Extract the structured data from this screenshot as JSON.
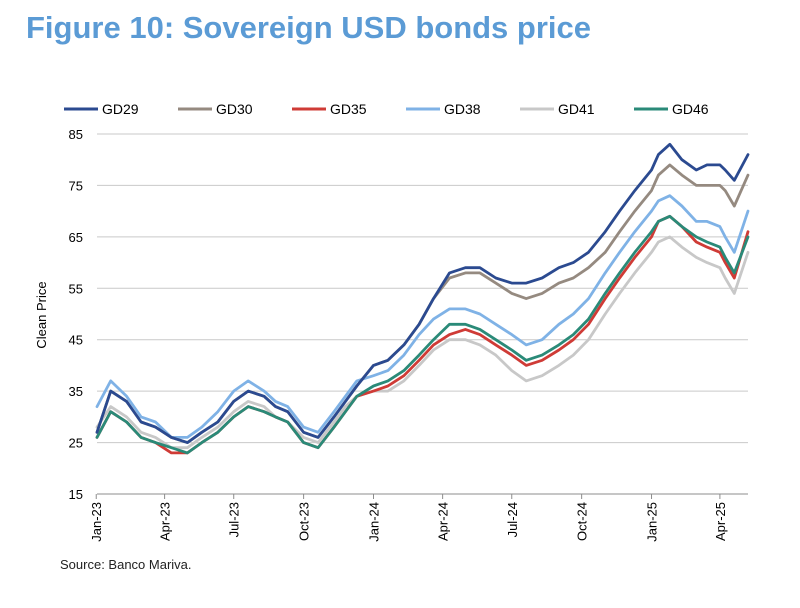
{
  "page": {
    "title": "Figure 10: Sovereign USD bonds price",
    "source": "Source: Banco Mariva."
  },
  "colors": {
    "title": "#5b9bd5",
    "GD29": "#2b4a90",
    "GD30": "#958a80",
    "GD35": "#cf3b36",
    "GD38": "#7fb2e6",
    "GD41": "#c8c8c8",
    "GD46": "#2a8a78"
  },
  "chart_data": {
    "type": "line",
    "ylabel": "Clean Price",
    "xlabel": "",
    "ylim": [
      15,
      85
    ],
    "yticks": [
      15,
      25,
      35,
      45,
      55,
      65,
      75,
      85
    ],
    "xlim": [
      "2023-01-02",
      "2025-05-08"
    ],
    "xticks": [
      {
        "date": "2023-01-01",
        "label": "Jan-23"
      },
      {
        "date": "2023-04-01",
        "label": "Apr-23"
      },
      {
        "date": "2023-07-01",
        "label": "Jul-23"
      },
      {
        "date": "2023-10-01",
        "label": "Oct-23"
      },
      {
        "date": "2024-01-01",
        "label": "Jan-24"
      },
      {
        "date": "2024-04-01",
        "label": "Apr-24"
      },
      {
        "date": "2024-07-01",
        "label": "Jul-24"
      },
      {
        "date": "2024-10-01",
        "label": "Oct-24"
      },
      {
        "date": "2025-01-01",
        "label": "Jan-25"
      },
      {
        "date": "2025-04-01",
        "label": "Apr-25"
      }
    ],
    "grid": "horizontal",
    "legend": "top",
    "x": [
      "2023-01-02",
      "2023-01-20",
      "2023-02-10",
      "2023-03-01",
      "2023-03-20",
      "2023-04-10",
      "2023-05-01",
      "2023-05-20",
      "2023-06-10",
      "2023-07-01",
      "2023-07-20",
      "2023-08-10",
      "2023-08-25",
      "2023-09-10",
      "2023-10-01",
      "2023-10-20",
      "2023-11-10",
      "2023-11-25",
      "2023-12-10",
      "2024-01-01",
      "2024-01-20",
      "2024-02-10",
      "2024-03-01",
      "2024-03-20",
      "2024-04-10",
      "2024-05-01",
      "2024-05-20",
      "2024-06-10",
      "2024-07-01",
      "2024-07-20",
      "2024-08-10",
      "2024-09-01",
      "2024-09-20",
      "2024-10-10",
      "2024-11-01",
      "2024-11-20",
      "2024-12-10",
      "2025-01-01",
      "2025-01-10",
      "2025-01-25",
      "2025-02-10",
      "2025-03-01",
      "2025-03-15",
      "2025-04-01",
      "2025-04-08",
      "2025-04-20",
      "2025-05-08"
    ],
    "series": [
      {
        "name": "GD29",
        "values": [
          27,
          35,
          33,
          29,
          28,
          26,
          25,
          27,
          29,
          33,
          35,
          34,
          32,
          31,
          27,
          26,
          30,
          33,
          36,
          40,
          41,
          44,
          48,
          53,
          58,
          59,
          59,
          57,
          56,
          56,
          57,
          59,
          60,
          62,
          66,
          70,
          74,
          78,
          81,
          83,
          80,
          78,
          79,
          79,
          78,
          76,
          81
        ]
      },
      {
        "name": "GD30",
        "values": [
          27,
          35,
          33,
          29,
          28,
          26,
          25,
          27,
          29,
          33,
          35,
          34,
          32,
          31,
          27,
          26,
          30,
          33,
          36,
          40,
          41,
          44,
          48,
          53,
          57,
          58,
          58,
          56,
          54,
          53,
          54,
          56,
          57,
          59,
          62,
          66,
          70,
          74,
          77,
          79,
          77,
          75,
          75,
          75,
          74,
          71,
          77
        ]
      },
      {
        "name": "GD35",
        "values": [
          26,
          31,
          29,
          26,
          25,
          23,
          23,
          25,
          27,
          30,
          32,
          31,
          30,
          29,
          25,
          24,
          28,
          31,
          34,
          35,
          36,
          38,
          41,
          44,
          46,
          47,
          46,
          44,
          42,
          40,
          41,
          43,
          45,
          48,
          53,
          57,
          61,
          65,
          68,
          69,
          67,
          64,
          63,
          62,
          60,
          57,
          66
        ]
      },
      {
        "name": "GD38",
        "values": [
          32,
          37,
          34,
          30,
          29,
          26,
          26,
          28,
          31,
          35,
          37,
          35,
          33,
          32,
          28,
          27,
          31,
          34,
          37,
          38,
          39,
          42,
          46,
          49,
          51,
          51,
          50,
          48,
          46,
          44,
          45,
          48,
          50,
          53,
          58,
          62,
          66,
          70,
          72,
          73,
          71,
          68,
          68,
          67,
          65,
          62,
          70
        ]
      },
      {
        "name": "GD41",
        "values": [
          28,
          32,
          30,
          27,
          26,
          24,
          24,
          26,
          28,
          31,
          33,
          32,
          30,
          29,
          26,
          25,
          29,
          32,
          34,
          35,
          35,
          37,
          40,
          43,
          45,
          45,
          44,
          42,
          39,
          37,
          38,
          40,
          42,
          45,
          50,
          54,
          58,
          62,
          64,
          65,
          63,
          61,
          60,
          59,
          57,
          54,
          62
        ]
      },
      {
        "name": "GD46",
        "values": [
          26,
          31,
          29,
          26,
          25,
          24,
          23,
          25,
          27,
          30,
          32,
          31,
          30,
          29,
          25,
          24,
          28,
          31,
          34,
          36,
          37,
          39,
          42,
          45,
          48,
          48,
          47,
          45,
          43,
          41,
          42,
          44,
          46,
          49,
          54,
          58,
          62,
          66,
          68,
          69,
          67,
          65,
          64,
          63,
          61,
          58,
          65
        ]
      }
    ]
  }
}
